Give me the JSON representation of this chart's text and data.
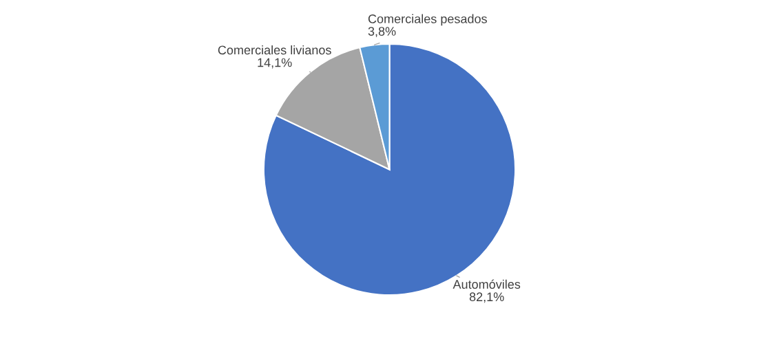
{
  "chart_data": {
    "type": "pie",
    "categories": [
      "Automóviles",
      "Comerciales livianos",
      "Comerciales pesados"
    ],
    "values": [
      82.1,
      14.1,
      3.8
    ],
    "value_labels": [
      "82,1%",
      "14,1%",
      "3,8%"
    ],
    "colors": [
      "#4472c4",
      "#a5a5a5",
      "#5b9bd5"
    ],
    "legend": false
  }
}
